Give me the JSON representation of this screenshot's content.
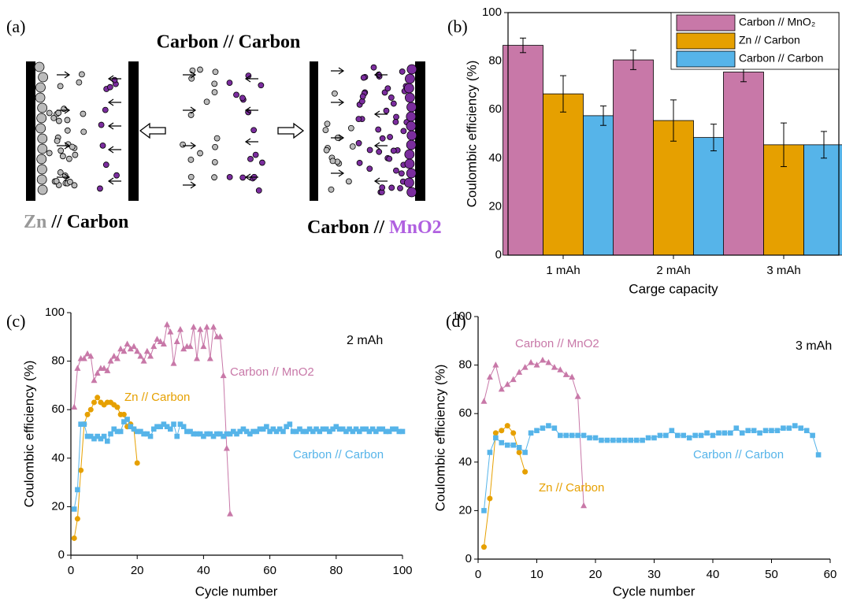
{
  "diagram": {
    "label": "(a)",
    "title": "Carbon // Carbon",
    "left_label": [
      "Zn",
      "// Carbon"
    ],
    "right_label": [
      "Carbon //",
      "MnO2"
    ]
  },
  "chart_data": [
    {
      "type": "bar",
      "panel_label": "(b)",
      "x_label": "Carge capacity",
      "y_label": "Coulombic efficiency (%)",
      "categories": [
        "1 mAh",
        "2 mAh",
        "3 mAh"
      ],
      "series": [
        {
          "name": "Carbon // MnO₂",
          "color": "#c878a8",
          "values": [
            86.5,
            80.5,
            75.5
          ],
          "errors": [
            3,
            4,
            4
          ]
        },
        {
          "name": "Zn // Carbon",
          "color": "#e6a000",
          "values": [
            66.5,
            55.5,
            45.5
          ],
          "errors": [
            7.5,
            8.5,
            9
          ]
        },
        {
          "name": "Carbon // Carbon",
          "color": "#56b4e9",
          "values": [
            57.5,
            48.5,
            45.5
          ],
          "errors": [
            4,
            5.5,
            5.5
          ]
        }
      ],
      "ylim": [
        0,
        100
      ],
      "yticks": [
        0,
        20,
        40,
        60,
        80,
        100
      ],
      "legend": "upper right"
    },
    {
      "type": "line",
      "panel_label": "(c)",
      "annotation": "2 mAh",
      "x_label": "Cycle number",
      "y_label": "Coulombic efficiency (%)",
      "series": [
        {
          "name": "Carbon // MnO2",
          "color": "#c878a8",
          "marker": "triangle",
          "x": [
            1,
            2,
            3,
            4,
            5,
            6,
            7,
            8,
            9,
            10,
            11,
            12,
            13,
            14,
            15,
            16,
            17,
            18,
            19,
            20,
            21,
            22,
            23,
            24,
            25,
            26,
            27,
            28,
            29,
            30,
            31,
            32,
            33,
            34,
            35,
            36,
            37,
            38,
            39,
            40,
            41,
            42,
            43,
            44,
            45,
            46,
            47,
            48
          ],
          "values": [
            61,
            77,
            81,
            81,
            83,
            82,
            72,
            75,
            77,
            77,
            76,
            80,
            82,
            81,
            85,
            84,
            87,
            85,
            86,
            84,
            82,
            80,
            84,
            82,
            86,
            89,
            88,
            87,
            95,
            92,
            79,
            88,
            93,
            85,
            86,
            86,
            94,
            81,
            93,
            86,
            94,
            81,
            94,
            90,
            90,
            74,
            44,
            17
          ]
        },
        {
          "name": "Zn // Carbon",
          "color": "#e6a000",
          "marker": "circle",
          "x": [
            1,
            2,
            3,
            4,
            5,
            6,
            7,
            8,
            9,
            10,
            11,
            12,
            13,
            14,
            15,
            16,
            17,
            18,
            19,
            20
          ],
          "values": [
            7,
            15,
            35,
            54,
            58,
            60,
            63,
            65,
            63,
            62,
            63,
            63,
            62,
            61,
            58,
            58,
            53,
            54,
            52,
            38
          ]
        },
        {
          "name": "Carbon // Carbon",
          "color": "#56b4e9",
          "marker": "square",
          "x": [
            1,
            2,
            3,
            4,
            5,
            6,
            7,
            8,
            9,
            10,
            11,
            12,
            13,
            14,
            15,
            16,
            17,
            18,
            19,
            20,
            21,
            22,
            23,
            24,
            25,
            26,
            27,
            28,
            29,
            30,
            31,
            32,
            33,
            34,
            35,
            36,
            37,
            38,
            39,
            40,
            41,
            42,
            43,
            44,
            45,
            46,
            47,
            48,
            49,
            50,
            51,
            52,
            53,
            54,
            55,
            56,
            57,
            58,
            59,
            60,
            61,
            62,
            63,
            64,
            65,
            66,
            67,
            68,
            69,
            70,
            71,
            72,
            73,
            74,
            75,
            76,
            77,
            78,
            79,
            80,
            81,
            82,
            83,
            84,
            85,
            86,
            87,
            88,
            89,
            90,
            91,
            92,
            93,
            94,
            95,
            96,
            97,
            98,
            99,
            100
          ],
          "values": [
            19,
            27,
            54,
            54,
            49,
            49,
            48,
            49,
            48,
            49,
            47,
            50,
            52,
            51,
            51,
            55,
            56,
            53,
            52,
            51,
            51,
            50,
            50,
            49,
            52,
            53,
            53,
            54,
            53,
            52,
            54,
            49,
            54,
            53,
            51,
            51,
            50,
            50,
            50,
            49,
            50,
            50,
            49,
            50,
            50,
            49,
            50,
            50,
            51,
            50,
            51,
            52,
            51,
            50,
            51,
            51,
            52,
            52,
            53,
            51,
            52,
            51,
            52,
            51,
            53,
            54,
            51,
            51,
            52,
            51,
            51,
            52,
            51,
            52,
            51,
            52,
            52,
            51,
            52,
            53,
            52,
            52,
            51,
            52,
            51,
            52,
            51,
            52,
            52,
            51,
            52,
            51,
            52,
            52,
            51,
            51,
            52,
            52,
            51,
            51
          ]
        }
      ],
      "xlim": [
        0,
        100
      ],
      "xticks": [
        0,
        20,
        40,
        60,
        80,
        100
      ],
      "ylim": [
        0,
        100
      ],
      "yticks": [
        0,
        20,
        40,
        60,
        80,
        100
      ]
    },
    {
      "type": "line",
      "panel_label": "(d)",
      "annotation": "3 mAh",
      "x_label": "Cycle number",
      "y_label": "Coulombic efficiency (%)",
      "series": [
        {
          "name": "Carbon // MnO2",
          "color": "#c878a8",
          "marker": "triangle",
          "x": [
            1,
            2,
            3,
            4,
            5,
            6,
            7,
            8,
            9,
            10,
            11,
            12,
            13,
            14,
            15,
            16,
            17,
            18
          ],
          "values": [
            65,
            75,
            80,
            70,
            72,
            74,
            77,
            79,
            81,
            80,
            82,
            81,
            79,
            78,
            76,
            75,
            67,
            22
          ]
        },
        {
          "name": "Zn // Carbon",
          "color": "#e6a000",
          "marker": "circle",
          "x": [
            1,
            2,
            3,
            4,
            5,
            6,
            7,
            8
          ],
          "values": [
            5,
            25,
            52,
            53,
            55,
            52,
            44,
            36
          ]
        },
        {
          "name": "Carbon // Carbon",
          "color": "#56b4e9",
          "marker": "square",
          "x": [
            1,
            2,
            3,
            4,
            5,
            6,
            7,
            8,
            9,
            10,
            11,
            12,
            13,
            14,
            15,
            16,
            17,
            18,
            19,
            20,
            21,
            22,
            23,
            24,
            25,
            26,
            27,
            28,
            29,
            30,
            31,
            32,
            33,
            34,
            35,
            36,
            37,
            38,
            39,
            40,
            41,
            42,
            43,
            44,
            45,
            46,
            47,
            48,
            49,
            50,
            51,
            52,
            53,
            54,
            55,
            56,
            57,
            58
          ],
          "values": [
            20,
            44,
            50,
            48,
            47,
            47,
            46,
            44,
            52,
            53,
            54,
            55,
            54,
            51,
            51,
            51,
            51,
            51,
            50,
            50,
            49,
            49,
            49,
            49,
            49,
            49,
            49,
            49,
            50,
            50,
            51,
            51,
            53,
            51,
            51,
            50,
            51,
            51,
            52,
            51,
            52,
            52,
            52,
            54,
            52,
            53,
            53,
            52,
            53,
            53,
            53,
            54,
            54,
            55,
            54,
            53,
            51,
            43
          ]
        }
      ],
      "xlim": [
        0,
        60
      ],
      "xticks": [
        0,
        10,
        20,
        30,
        40,
        50,
        60
      ],
      "ylim": [
        0,
        100
      ],
      "yticks": [
        0,
        20,
        40,
        60,
        80,
        100
      ]
    }
  ]
}
